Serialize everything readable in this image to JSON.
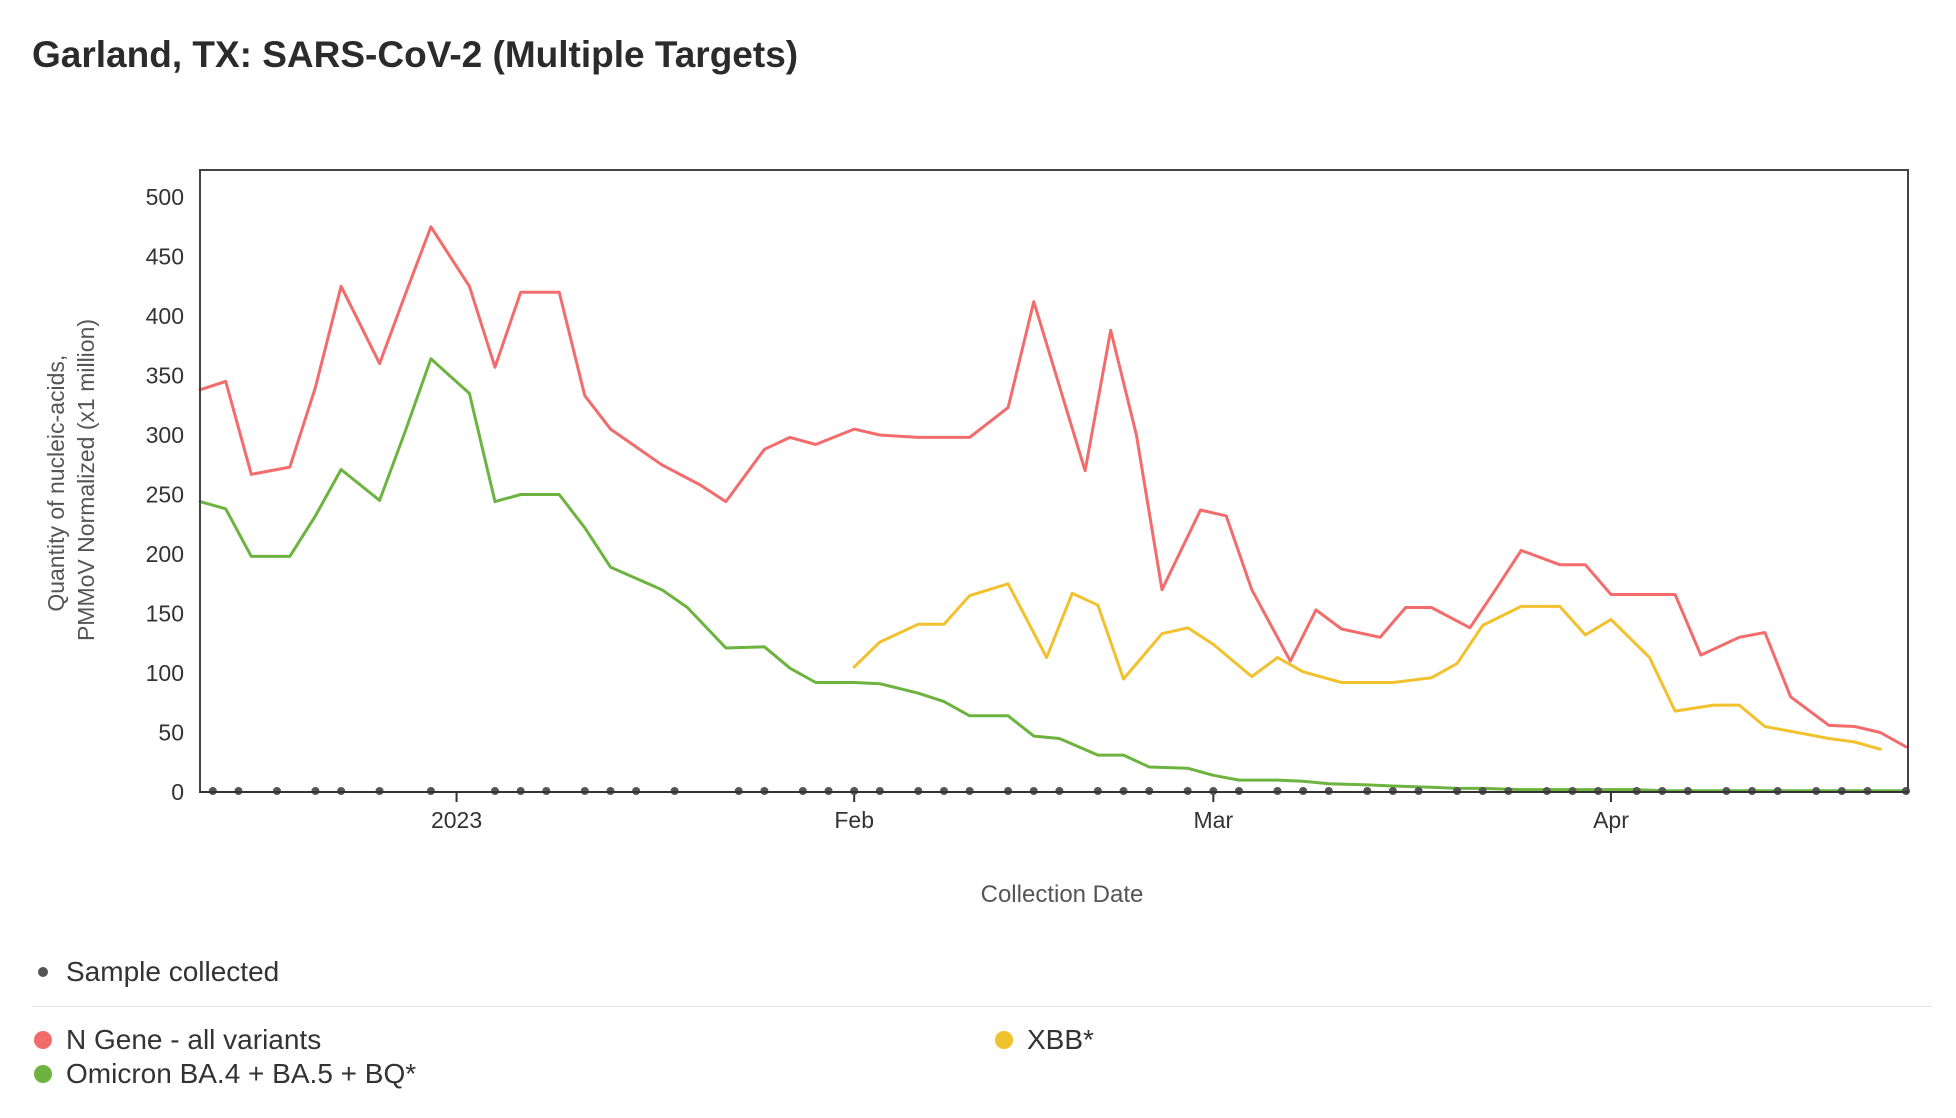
{
  "title": "Garland, TX: SARS-CoV-2 (Multiple Targets)",
  "colors": {
    "n_gene": "#f26c6c",
    "omicron": "#6cb33f",
    "xbb": "#f2c12e",
    "sample": "#555555",
    "axis": "#333333",
    "frame": "#444444"
  },
  "legend": {
    "sample_label": "Sample collected",
    "items": [
      {
        "key": "n_gene",
        "label": "N Gene - all variants"
      },
      {
        "key": "omicron",
        "label": "Omicron BA.4 + BA.5 + BQ*"
      },
      {
        "key": "xbb",
        "label": "XBB*"
      }
    ]
  },
  "chart_data": {
    "type": "line",
    "title": "Garland, TX: SARS-CoV-2 (Multiple Targets)",
    "xlabel": "Collection Date",
    "ylabel": "Quantity of nucleic-acids, PMMoV Normalized (x1 million)",
    "ylabel_lines": [
      "Quantity of nucleic-acids,",
      "PMMoV Normalized (x1 million)"
    ],
    "x_range_days": [
      -20,
      113
    ],
    "x_day_zero": "2023-01-01",
    "ylim": [
      0,
      500
    ],
    "yticks": [
      0,
      50,
      100,
      150,
      200,
      250,
      300,
      350,
      400,
      450,
      500
    ],
    "xticks": [
      {
        "label": "2023",
        "day": 0
      },
      {
        "label": "Feb",
        "day": 31
      },
      {
        "label": "Mar",
        "day": 59
      },
      {
        "label": "Apr",
        "day": 90
      }
    ],
    "sample_days": [
      -19,
      -17,
      -14,
      -11,
      -9,
      -6,
      -2,
      3,
      5,
      7,
      10,
      12,
      14,
      17,
      22,
      24,
      27,
      29,
      31,
      33,
      36,
      38,
      40,
      43,
      45,
      47,
      50,
      52,
      54,
      57,
      59,
      61,
      64,
      66,
      68,
      71,
      73,
      75,
      78,
      80,
      82,
      85,
      87,
      89,
      92,
      94,
      96,
      99,
      101,
      103,
      106,
      108,
      110,
      113
    ],
    "series": [
      {
        "key": "n_gene",
        "name": "N Gene - all variants",
        "points": [
          [
            -20,
            338
          ],
          [
            -18,
            345
          ],
          [
            -16,
            267
          ],
          [
            -13,
            273
          ],
          [
            -11,
            340
          ],
          [
            -9,
            425
          ],
          [
            -6,
            360
          ],
          [
            -4,
            418
          ],
          [
            -2,
            475
          ],
          [
            1,
            425
          ],
          [
            3,
            357
          ],
          [
            5,
            420
          ],
          [
            8,
            420
          ],
          [
            10,
            333
          ],
          [
            12,
            305
          ],
          [
            16,
            275
          ],
          [
            19,
            258
          ],
          [
            21,
            244
          ],
          [
            24,
            288
          ],
          [
            26,
            298
          ],
          [
            28,
            292
          ],
          [
            31,
            305
          ],
          [
            33,
            300
          ],
          [
            36,
            298
          ],
          [
            38,
            298
          ],
          [
            40,
            298
          ],
          [
            43,
            323
          ],
          [
            45,
            412
          ],
          [
            49,
            270
          ],
          [
            51,
            388
          ],
          [
            53,
            300
          ],
          [
            55,
            170
          ],
          [
            58,
            237
          ],
          [
            60,
            232
          ],
          [
            62,
            170
          ],
          [
            65,
            110
          ],
          [
            67,
            153
          ],
          [
            69,
            137
          ],
          [
            72,
            130
          ],
          [
            74,
            155
          ],
          [
            76,
            155
          ],
          [
            79,
            138
          ],
          [
            81,
            170
          ],
          [
            83,
            203
          ],
          [
            86,
            191
          ],
          [
            88,
            191
          ],
          [
            90,
            166
          ],
          [
            93,
            166
          ],
          [
            95,
            166
          ],
          [
            97,
            115
          ],
          [
            100,
            130
          ],
          [
            102,
            134
          ],
          [
            104,
            80
          ],
          [
            107,
            56
          ],
          [
            109,
            55
          ],
          [
            111,
            50
          ],
          [
            113,
            38
          ]
        ]
      },
      {
        "key": "omicron",
        "name": "Omicron BA.4 + BA.5 + BQ*",
        "points": [
          [
            -20,
            244
          ],
          [
            -18,
            238
          ],
          [
            -16,
            198
          ],
          [
            -13,
            198
          ],
          [
            -11,
            232
          ],
          [
            -9,
            271
          ],
          [
            -6,
            245
          ],
          [
            -4,
            303
          ],
          [
            -2,
            364
          ],
          [
            1,
            335
          ],
          [
            3,
            244
          ],
          [
            5,
            250
          ],
          [
            8,
            250
          ],
          [
            10,
            222
          ],
          [
            12,
            189
          ],
          [
            16,
            170
          ],
          [
            18,
            155
          ],
          [
            21,
            121
          ],
          [
            24,
            122
          ],
          [
            26,
            104
          ],
          [
            28,
            92
          ],
          [
            31,
            92
          ],
          [
            33,
            91
          ],
          [
            36,
            83
          ],
          [
            38,
            76
          ],
          [
            40,
            64
          ],
          [
            43,
            64
          ],
          [
            45,
            47
          ],
          [
            47,
            45
          ],
          [
            50,
            31
          ],
          [
            52,
            31
          ],
          [
            54,
            21
          ],
          [
            57,
            20
          ],
          [
            59,
            14
          ],
          [
            61,
            10
          ],
          [
            64,
            10
          ],
          [
            66,
            9
          ],
          [
            68,
            7
          ],
          [
            71,
            6
          ],
          [
            73,
            5
          ],
          [
            76,
            4
          ],
          [
            78,
            3
          ],
          [
            80,
            3
          ],
          [
            83,
            2
          ],
          [
            85,
            2
          ],
          [
            87,
            2
          ],
          [
            90,
            2
          ],
          [
            92,
            2
          ],
          [
            94,
            1
          ],
          [
            97,
            1
          ],
          [
            99,
            1
          ],
          [
            101,
            1
          ],
          [
            104,
            1
          ],
          [
            106,
            1
          ],
          [
            109,
            1
          ],
          [
            111,
            1
          ],
          [
            113,
            1
          ]
        ]
      },
      {
        "key": "xbb",
        "name": "XBB*",
        "points": [
          [
            31,
            105
          ],
          [
            33,
            126
          ],
          [
            36,
            141
          ],
          [
            38,
            141
          ],
          [
            40,
            165
          ],
          [
            43,
            175
          ],
          [
            46,
            113
          ],
          [
            48,
            167
          ],
          [
            50,
            157
          ],
          [
            52,
            95
          ],
          [
            55,
            133
          ],
          [
            57,
            138
          ],
          [
            59,
            124
          ],
          [
            62,
            97
          ],
          [
            64,
            113
          ],
          [
            66,
            101
          ],
          [
            69,
            92
          ],
          [
            71,
            92
          ],
          [
            73,
            92
          ],
          [
            76,
            96
          ],
          [
            78,
            108
          ],
          [
            80,
            140
          ],
          [
            83,
            156
          ],
          [
            86,
            156
          ],
          [
            88,
            132
          ],
          [
            90,
            145
          ],
          [
            93,
            113
          ],
          [
            95,
            68
          ],
          [
            98,
            73
          ],
          [
            100,
            73
          ],
          [
            102,
            55
          ],
          [
            105,
            49
          ],
          [
            107,
            45
          ],
          [
            109,
            42
          ],
          [
            111,
            36
          ]
        ]
      }
    ]
  }
}
